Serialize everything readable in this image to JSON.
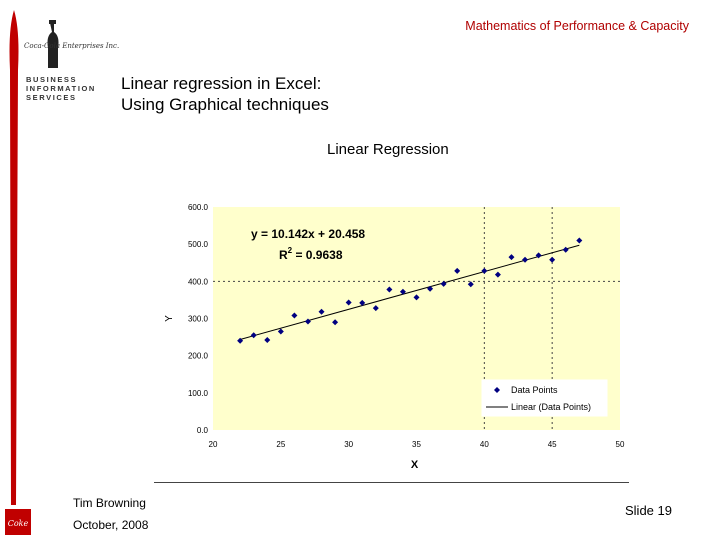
{
  "header": {
    "title": "Mathematics of Performance & Capacity"
  },
  "branding": {
    "lines": [
      "BUSINESS",
      "INFORMATION",
      "SERVICES"
    ],
    "accent_color": "#c00000"
  },
  "slide": {
    "title_line1": "Linear regression in Excel:",
    "title_line2": "Using Graphical techniques"
  },
  "footer": {
    "author": "Tim Browning",
    "date": "October, 2008",
    "slide_number": "Slide 19"
  },
  "chart_data": {
    "type": "scatter",
    "title": "Linear Regression",
    "xlabel": "X",
    "ylabel": "Y",
    "xlim": [
      20,
      50
    ],
    "ylim": [
      0,
      600
    ],
    "x_ticks": [
      20,
      25,
      30,
      35,
      40,
      45,
      50
    ],
    "y_ticks": [
      0,
      100,
      200,
      300,
      400,
      500,
      600
    ],
    "x_tick_labels": [
      "20",
      "25",
      "30",
      "35",
      "40",
      "45",
      "50"
    ],
    "y_tick_labels": [
      "0.0",
      "100.0",
      "200.0",
      "300.0",
      "400.0",
      "500.0",
      "600.0"
    ],
    "grid": false,
    "plot_background": "#ffffcc",
    "series": [
      {
        "name": "Data Points",
        "color": "#000080",
        "points": [
          [
            22,
            240
          ],
          [
            23,
            255
          ],
          [
            24,
            242
          ],
          [
            25,
            265
          ],
          [
            26,
            308
          ],
          [
            27,
            292
          ],
          [
            28,
            318
          ],
          [
            29,
            290
          ],
          [
            30,
            343
          ],
          [
            31,
            342
          ],
          [
            32,
            328
          ],
          [
            33,
            378
          ],
          [
            34,
            372
          ],
          [
            35,
            357
          ],
          [
            36,
            380
          ],
          [
            37,
            393
          ],
          [
            38,
            428
          ],
          [
            39,
            392
          ],
          [
            40,
            428
          ],
          [
            41,
            418
          ],
          [
            42,
            465
          ],
          [
            43,
            458
          ],
          [
            44,
            470
          ],
          [
            45,
            458
          ],
          [
            46,
            485
          ],
          [
            47,
            510
          ]
        ]
      },
      {
        "name": "Linear (Data Points)",
        "color": "#000000",
        "slope": 10.142,
        "intercept": 20.458
      }
    ],
    "annotations": {
      "equation": "y = 10.142x + 20.458",
      "r2_prefix": "R",
      "r2_exp": "2",
      "r2_value": " = 0.9638"
    },
    "reference_lines_x": [
      40,
      45
    ],
    "legend": {
      "position": "bottom-right",
      "entries": [
        "Data Points",
        "Linear (Data Points)"
      ]
    }
  }
}
